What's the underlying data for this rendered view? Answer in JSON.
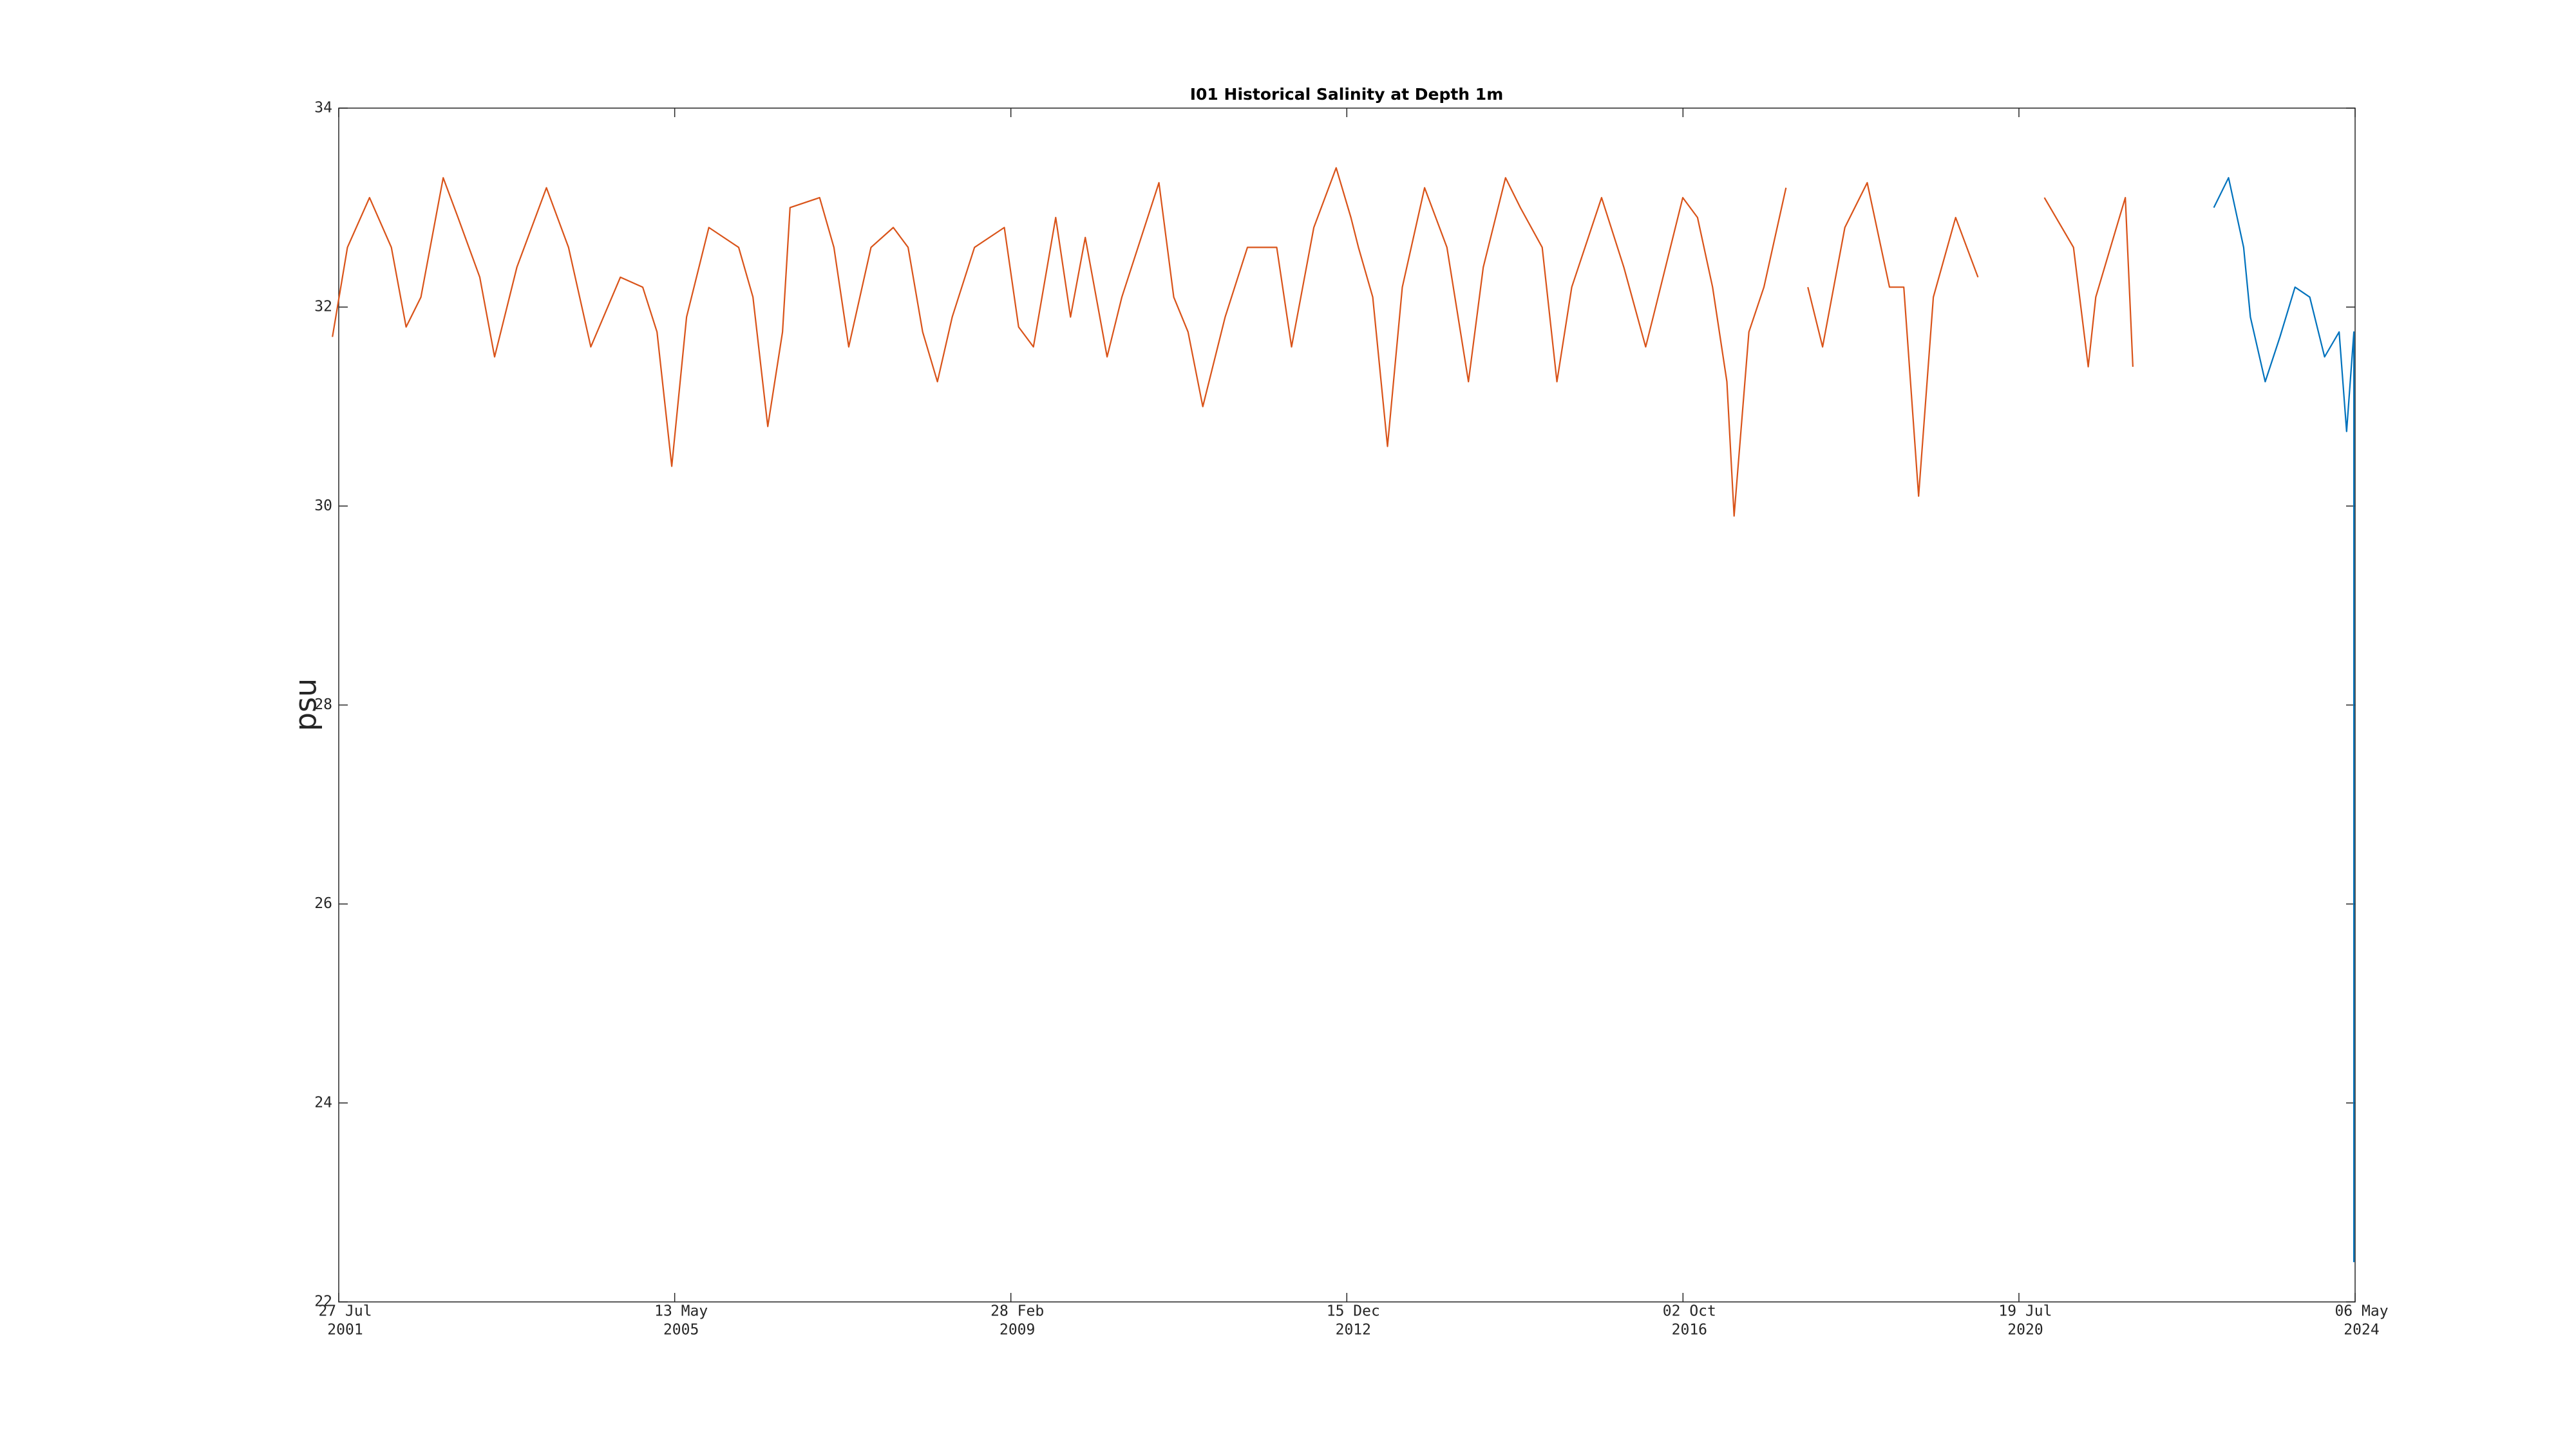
{
  "chart_data": {
    "type": "line",
    "title": "I01 Historical Salinity at Depth 1m",
    "y_label": "psu",
    "xlim": [
      "2001-07-27",
      "2024-05-06"
    ],
    "xticks": [
      {
        "value": "2001-07-27",
        "label": [
          "27 Jul",
          "2001"
        ]
      },
      {
        "value": "2005-05-13",
        "label": [
          "13 May",
          "2005"
        ]
      },
      {
        "value": "2009-02-28",
        "label": [
          "28 Feb",
          "2009"
        ]
      },
      {
        "value": "2012-12-15",
        "label": [
          "15 Dec",
          "2012"
        ]
      },
      {
        "value": "2016-10-02",
        "label": [
          "02 Oct",
          "2016"
        ]
      },
      {
        "value": "2020-07-19",
        "label": [
          "19 Jul",
          "2020"
        ]
      },
      {
        "value": "2024-05-06",
        "label": [
          "06 May",
          "2024"
        ]
      }
    ],
    "ylim": [
      22,
      34
    ],
    "yticks": [
      22,
      24,
      26,
      28,
      30,
      32,
      34
    ],
    "grid": false,
    "series": [
      {
        "color": "#d95319",
        "x": [
          "2001-07",
          "2001-09",
          "2001-12",
          "2002-03",
          "2002-05",
          "2002-07",
          "2002-10",
          "2002-12",
          "2003-03",
          "2003-05",
          "2003-08",
          "2003-12",
          "2004-03",
          "2004-06",
          "2004-10",
          "2005-01",
          "2005-03",
          "2005-05",
          "2005-07",
          "2005-10",
          "2006-02",
          "2006-04",
          "2006-06",
          "2006-08",
          "2006-09",
          "2007-01",
          "2007-03",
          "2007-05",
          "2007-08",
          "2007-11",
          "2008-01",
          "2008-03",
          "2008-05",
          "2008-07",
          "2008-10",
          "2009-02",
          "2009-04",
          "2009-06",
          "2009-09",
          "2009-11",
          "2010-01",
          "2010-04",
          "2010-06",
          "2010-11",
          "2011-01",
          "2011-03",
          "2011-05",
          "2011-08",
          "2011-11",
          "2012-03",
          "2012-05",
          "2012-08",
          "2012-11",
          "2013-01",
          "2013-02",
          "2013-04",
          "2013-06",
          "2013-08",
          "2013-11",
          "2014-02",
          "2014-05",
          "2014-07",
          "2014-10",
          "2014-12",
          "2015-03",
          "2015-05",
          "2015-07",
          "2015-11",
          "2016-02",
          "2016-05",
          "2016-06",
          "2016-10",
          "2016-12",
          "2017-02",
          "2017-04",
          "2017-05",
          "2017-07",
          "2017-09",
          "2017-12",
          "2018-01",
          "2018-03",
          "2018-05",
          "2018-08",
          "2018-11",
          "2019-02",
          "2019-04",
          "2019-06",
          "2019-08",
          "2019-11",
          "2020-02",
          "2020-06",
          "2020-11",
          "2021-03",
          "2021-05",
          "2021-06",
          "2021-08",
          "2021-10",
          "2021-11"
        ],
        "values": [
          31.7,
          32.6,
          33.1,
          32.6,
          31.8,
          32.1,
          33.3,
          32.9,
          32.3,
          31.5,
          32.4,
          33.2,
          32.6,
          31.6,
          32.3,
          32.2,
          31.75,
          30.4,
          31.9,
          32.8,
          32.6,
          32.1,
          30.8,
          31.75,
          33.0,
          33.1,
          32.6,
          31.6,
          32.6,
          32.8,
          32.6,
          31.75,
          31.25,
          31.9,
          32.6,
          32.8,
          31.8,
          31.6,
          32.9,
          31.9,
          32.7,
          31.5,
          32.1,
          33.25,
          32.1,
          31.75,
          31.0,
          31.9,
          32.6,
          32.6,
          31.6,
          32.8,
          33.4,
          32.9,
          32.6,
          32.1,
          30.6,
          32.2,
          33.2,
          32.6,
          31.25,
          32.4,
          33.3,
          33.0,
          32.6,
          31.25,
          32.2,
          33.1,
          32.4,
          31.6,
          31.9,
          33.1,
          32.9,
          32.2,
          31.25,
          29.9,
          31.75,
          32.2,
          33.2,
          null,
          32.2,
          31.6,
          32.8,
          33.25,
          32.2,
          32.2,
          30.1,
          32.1,
          32.9,
          32.3,
          null,
          33.1,
          32.6,
          31.4,
          32.1,
          32.6,
          33.1,
          31.4
        ]
      },
      {
        "color": "#0072bd",
        "x": [
          "2022-10",
          "2022-12",
          "2023-02",
          "2023-03",
          "2023-05",
          "2023-07",
          "2023-09",
          "2023-11",
          "2024-01",
          "2024-03",
          "2024-04",
          "2024-05",
          "2024-05"
        ],
        "values": [
          33.0,
          33.3,
          32.6,
          31.9,
          31.25,
          31.7,
          32.2,
          32.1,
          31.5,
          31.75,
          30.75,
          31.75,
          22.4
        ]
      }
    ]
  }
}
